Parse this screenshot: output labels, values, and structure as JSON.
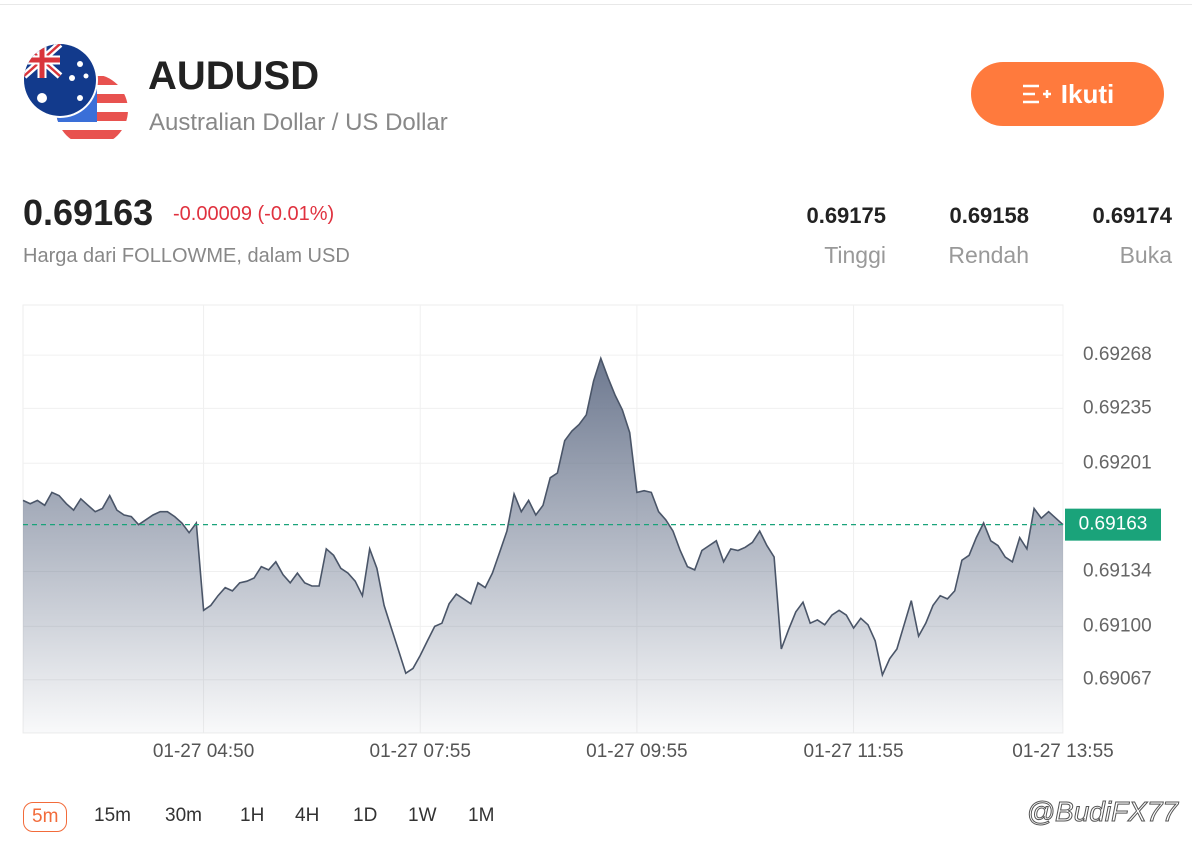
{
  "header": {
    "symbol": "AUDUSD",
    "name": "Australian Dollar / US Dollar",
    "follow_button": "Ikuti"
  },
  "quote": {
    "price": "0.69163",
    "change": "-0.00009 (-0.01%)",
    "source": "Harga dari FOLLOWME, dalam USD",
    "stats": [
      {
        "value": "0.69175",
        "label": "Tinggi"
      },
      {
        "value": "0.69158",
        "label": "Rendah"
      },
      {
        "value": "0.69174",
        "label": "Buka"
      }
    ]
  },
  "chart_data": {
    "type": "area",
    "color": "#4a5568",
    "values": [
      0.69178,
      0.69176,
      0.69178,
      0.69175,
      0.69183,
      0.69181,
      0.69176,
      0.69172,
      0.69179,
      0.69175,
      0.69171,
      0.69173,
      0.69181,
      0.69172,
      0.69169,
      0.69168,
      0.69163,
      0.69166,
      0.69169,
      0.69171,
      0.69171,
      0.69168,
      0.69164,
      0.69158,
      0.69164,
      0.6911,
      0.69113,
      0.69119,
      0.69124,
      0.69122,
      0.69127,
      0.69128,
      0.6913,
      0.69137,
      0.69135,
      0.6914,
      0.69132,
      0.69127,
      0.69133,
      0.69127,
      0.69125,
      0.69125,
      0.69148,
      0.69144,
      0.69136,
      0.69133,
      0.69128,
      0.69119,
      0.69148,
      0.69136,
      0.69113,
      0.69099,
      0.69085,
      0.69071,
      0.69074,
      0.69082,
      0.69091,
      0.691,
      0.69102,
      0.69114,
      0.6912,
      0.69117,
      0.69114,
      0.69127,
      0.69124,
      0.69133,
      0.69146,
      0.69159,
      0.69182,
      0.69171,
      0.69178,
      0.69169,
      0.69175,
      0.69192,
      0.69195,
      0.69215,
      0.69221,
      0.69225,
      0.69231,
      0.69252,
      0.69266,
      0.69254,
      0.69243,
      0.69234,
      0.6922,
      0.69183,
      0.69184,
      0.69183,
      0.69171,
      0.69166,
      0.69159,
      0.69147,
      0.69137,
      0.69135,
      0.69147,
      0.6915,
      0.69153,
      0.6914,
      0.69148,
      0.69147,
      0.69149,
      0.69152,
      0.69159,
      0.6915,
      0.69143,
      0.69086,
      0.69098,
      0.69109,
      0.69115,
      0.69102,
      0.69104,
      0.69101,
      0.69107,
      0.6911,
      0.69107,
      0.69099,
      0.69105,
      0.69101,
      0.69091,
      0.6907,
      0.6908,
      0.69086,
      0.69101,
      0.69116,
      0.69094,
      0.69102,
      0.69113,
      0.69119,
      0.69117,
      0.69122,
      0.69141,
      0.69144,
      0.69155,
      0.69164,
      0.69153,
      0.6915,
      0.69143,
      0.6914,
      0.69155,
      0.69148,
      0.69173,
      0.69167,
      0.69171,
      0.69167,
      0.69163
    ],
    "xlim": [
      0,
      144
    ],
    "xticks": [
      {
        "value": 25,
        "label": "01-27 04:50"
      },
      {
        "value": 55,
        "label": "01-27 07:55"
      },
      {
        "value": 85,
        "label": "01-27 09:55"
      },
      {
        "value": 115,
        "label": "01-27 11:55"
      },
      {
        "value": 144,
        "label": "01-27 13:55"
      }
    ],
    "ylim": [
      0.69034,
      0.69299
    ],
    "yticks": [
      0.69268,
      0.69235,
      0.69201,
      0.69134,
      {
        "value": 0.691,
        "label": "0.69100"
      },
      0.69067
    ],
    "last_price": 0.69163,
    "last_price_color": "#1aa37a",
    "grid": true
  },
  "timeframes": [
    "5m",
    "15m",
    "30m",
    "1H",
    "4H",
    "1D",
    "1W",
    "1M"
  ],
  "active_timeframe": "5m",
  "watermark": "@BudiFX77"
}
